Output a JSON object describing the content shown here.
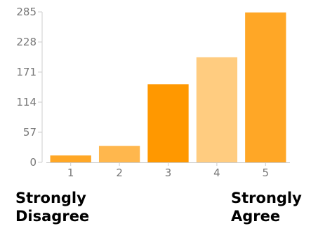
{
  "chart_data": {
    "type": "bar",
    "title": "",
    "xlabel": "",
    "ylabel": "",
    "categories": [
      "1",
      "2",
      "3",
      "4",
      "5"
    ],
    "values": [
      13,
      31,
      148,
      199,
      284
    ],
    "colors": [
      "#FFA726",
      "#FFB74D",
      "#FF9800",
      "#FFCC80",
      "#FFA726"
    ],
    "ylim": [
      0,
      285
    ],
    "yticks": [
      0,
      57,
      114,
      171,
      228,
      285
    ],
    "ytick_labels": [
      "0",
      "57",
      "114",
      "171",
      "228",
      "285"
    ],
    "grid": false
  },
  "scale_labels": {
    "left": {
      "line1": "Strongly",
      "line2": "Disagree"
    },
    "right": {
      "line1": "Strongly",
      "line2": "Agree"
    }
  }
}
